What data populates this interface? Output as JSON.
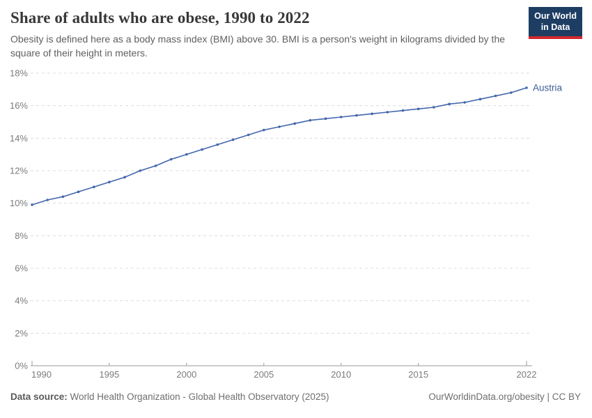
{
  "header": {
    "title": "Share of adults who are obese, 1990 to 2022",
    "subtitle": "Obesity is defined here as a body mass index (BMI) above 30. BMI is a person's weight in kilograms divided by the square of their height in meters.",
    "logo": {
      "line1": "Our World",
      "line2": "in Data",
      "bg_color": "#1d3d63",
      "accent_color": "#d2282e"
    }
  },
  "chart_data": {
    "type": "line",
    "title": "Share of adults who are obese, 1990 to 2022",
    "entity_label": "Austria",
    "x": [
      1990,
      1991,
      1992,
      1993,
      1994,
      1995,
      1996,
      1997,
      1998,
      1999,
      2000,
      2001,
      2002,
      2003,
      2004,
      2005,
      2006,
      2007,
      2008,
      2009,
      2010,
      2011,
      2012,
      2013,
      2014,
      2015,
      2016,
      2017,
      2018,
      2019,
      2020,
      2021,
      2022
    ],
    "values": [
      9.9,
      10.2,
      10.4,
      10.7,
      11.0,
      11.3,
      11.6,
      12.0,
      12.3,
      12.7,
      13.0,
      13.3,
      13.6,
      13.9,
      14.2,
      14.5,
      14.7,
      14.9,
      15.1,
      15.2,
      15.3,
      15.4,
      15.5,
      15.6,
      15.7,
      15.8,
      15.9,
      16.1,
      16.2,
      16.4,
      16.6,
      16.8,
      17.1
    ],
    "unit": "%",
    "xlabel": "",
    "ylabel": "",
    "ylim": [
      0,
      18
    ],
    "yticks": [
      0,
      2,
      4,
      6,
      8,
      10,
      12,
      14,
      16,
      18
    ],
    "xticks": [
      1990,
      1995,
      2000,
      2005,
      2010,
      2015,
      2022
    ],
    "grid": "horizontal-dashed",
    "legend_position": "end-of-line",
    "line_color": "#4266ab",
    "entity_label_color": "#3d6096",
    "grid_color": "#dcdcdc",
    "axis_line_color": "#999999",
    "tick_label_color": "#7b7b7b"
  },
  "footer": {
    "datasource_label": "Data source:",
    "datasource_text": " World Health Organization - Global Health Observatory (2025)",
    "link_text": "OurWorldinData.org/obesity | CC BY"
  }
}
